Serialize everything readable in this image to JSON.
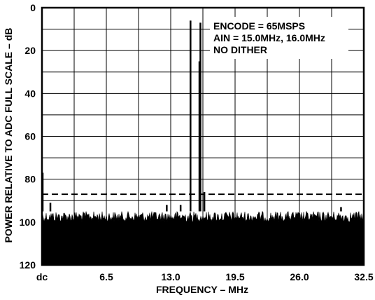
{
  "chart_data": {
    "type": "line",
    "title": "",
    "xlabel": "FREQUENCY – MHz",
    "ylabel": "POWER RELATIVE TO ADC FULL SCALE – dB",
    "x_ticks": [
      "dc",
      "6.5",
      "13.0",
      "19.5",
      "26.0",
      "32.5"
    ],
    "y_ticks": [
      "0",
      "20",
      "40",
      "60",
      "80",
      "100",
      "120"
    ],
    "xlim": [
      0,
      32.5
    ],
    "ylim": [
      0,
      120
    ],
    "y_inverted": true,
    "grid": true,
    "annotations": [
      "ENCODE = 65MSPS",
      "AIN = 15.0MHz, 16.0MHz",
      "NO DITHER"
    ],
    "reference_line": {
      "style": "dashed",
      "y": 87
    },
    "noise_floor": {
      "y_range": [
        95,
        100
      ]
    },
    "spurs": [
      {
        "x": 0.0,
        "y": 77
      },
      {
        "x": 0.85,
        "y": 91
      },
      {
        "x": 12.6,
        "y": 92
      },
      {
        "x": 14.0,
        "y": 92
      },
      {
        "x": 15.0,
        "y": 6
      },
      {
        "x": 15.9,
        "y": 25
      },
      {
        "x": 16.0,
        "y": 7
      },
      {
        "x": 16.4,
        "y": 86
      },
      {
        "x": 30.2,
        "y": 93
      }
    ]
  }
}
